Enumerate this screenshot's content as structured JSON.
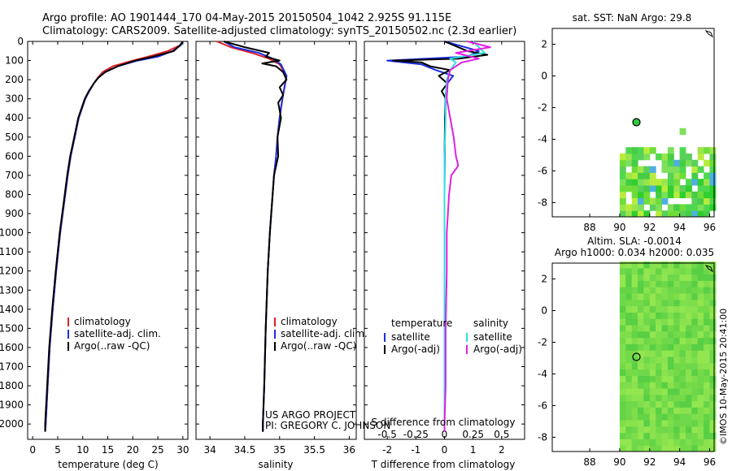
{
  "header": {
    "line1": "Argo profile: AO 1901444_170 04-May-2015 20150504_1042 2.925S 91.115E",
    "line2": "Climatology: CARS2009. Satellite-adjusted climatology: synTS_20150502.nc (2.3d earlier)"
  },
  "colors": {
    "climatology": "#e02020",
    "satellite": "#1a2ee0",
    "argo": "#000000",
    "satellite_diff_S": "#30e0e0",
    "argo_diff_S": "#e020e0"
  },
  "depth_axis": {
    "ticks": [
      0,
      100,
      200,
      300,
      400,
      500,
      600,
      700,
      800,
      900,
      1000,
      1100,
      1200,
      1300,
      1400,
      1500,
      1600,
      1700,
      1800,
      1900,
      2000
    ],
    "range": [
      0,
      2080
    ]
  },
  "credits": {
    "project": "US ARGO PROJECT",
    "pi": "PI: GREGORY C. JOHNSON"
  },
  "watermark": "©IMOS 10-May-2015 20:41:00",
  "chart_data": [
    {
      "type": "line",
      "name": "temperature",
      "xlabel": "temperature (deg C)",
      "xlim": [
        -1,
        31
      ],
      "xticks": [
        0,
        5,
        10,
        15,
        20,
        25,
        30
      ],
      "legend": [
        "climatology",
        "satellite-adj. clim.",
        "Argo(..raw -QC)"
      ],
      "series": [
        {
          "name": "climatology",
          "depth": [
            0,
            20,
            50,
            80,
            100,
            130,
            160,
            190,
            220,
            260,
            300,
            400,
            500,
            600,
            700,
            800,
            900,
            1000,
            1200,
            1400,
            1600,
            1800,
            2000,
            2040
          ],
          "values": [
            30,
            29.5,
            27,
            23,
            20,
            16,
            14,
            13,
            12.2,
            11.3,
            10.5,
            9.2,
            8.4,
            7.6,
            7.0,
            6.5,
            6.0,
            5.5,
            4.7,
            4.0,
            3.4,
            3.0,
            2.6,
            2.5
          ]
        },
        {
          "name": "satellite-adj. clim.",
          "depth": [
            0,
            20,
            50,
            80,
            100,
            130,
            160,
            190,
            220,
            260,
            300,
            400,
            500,
            600,
            700,
            800,
            900,
            1000,
            1200,
            1400,
            1600,
            1800,
            2000,
            2040
          ],
          "values": [
            30,
            29.6,
            28,
            25,
            21,
            17,
            14.5,
            13.1,
            12.2,
            11.3,
            10.5,
            9.2,
            8.4,
            7.6,
            7.0,
            6.5,
            6.0,
            5.5,
            4.7,
            4.0,
            3.4,
            3.0,
            2.6,
            2.5
          ]
        },
        {
          "name": "Argo(..raw -QC)",
          "depth": [
            0,
            20,
            50,
            80,
            100,
            130,
            160,
            190,
            220,
            260,
            300,
            400,
            500,
            600,
            700,
            800,
            900,
            1000,
            1200,
            1400,
            1600,
            1800,
            2000,
            2040
          ],
          "values": [
            30,
            29.4,
            28.2,
            24,
            20.5,
            17,
            14.5,
            13.1,
            12.2,
            11.2,
            10.4,
            9.1,
            8.3,
            7.5,
            6.9,
            6.4,
            5.9,
            5.4,
            4.6,
            3.9,
            3.3,
            2.9,
            2.5,
            2.5
          ]
        }
      ]
    },
    {
      "type": "line",
      "name": "salinity",
      "xlabel": "salinity",
      "xlim": [
        33.8,
        36.1
      ],
      "xticks": [
        34,
        34.5,
        35,
        35.5,
        36
      ],
      "legend": [
        "climatology",
        "satellite-adj. clim.",
        "Argo(..raw -QC)"
      ],
      "series": [
        {
          "name": "climatology",
          "depth": [
            0,
            30,
            60,
            90,
            120,
            150,
            180,
            220,
            260,
            300,
            400,
            500,
            600,
            700,
            800,
            1000,
            1200,
            1500,
            1800,
            2000,
            2040
          ],
          "values": [
            34.1,
            34.3,
            34.6,
            34.85,
            35.0,
            35.05,
            35.1,
            35.08,
            35.06,
            35.04,
            35.0,
            34.97,
            34.95,
            34.92,
            34.9,
            34.86,
            34.83,
            34.8,
            34.78,
            34.76,
            34.76
          ]
        },
        {
          "name": "satellite-adj. clim.",
          "depth": [
            0,
            30,
            60,
            90,
            120,
            150,
            180,
            220,
            260,
            300,
            400,
            500,
            600,
            700,
            800,
            1000,
            1200,
            1500,
            1800,
            2000,
            2040
          ],
          "values": [
            34.2,
            34.35,
            34.7,
            34.9,
            35.02,
            35.06,
            35.1,
            35.08,
            35.06,
            35.04,
            35.0,
            34.97,
            34.95,
            34.92,
            34.9,
            34.86,
            34.83,
            34.8,
            34.78,
            34.76,
            34.76
          ]
        },
        {
          "name": "Argo(..raw -QC)",
          "depth": [
            0,
            30,
            60,
            80,
            100,
            115,
            130,
            160,
            200,
            240,
            280,
            320,
            400,
            500,
            600,
            700,
            800,
            1000,
            1200,
            1500,
            1800,
            2000,
            2040
          ],
          "values": [
            34.2,
            34.5,
            34.85,
            34.8,
            35.0,
            34.75,
            34.95,
            35.05,
            35.1,
            35.0,
            35.05,
            34.98,
            35.02,
            34.97,
            34.98,
            34.92,
            34.9,
            34.86,
            34.83,
            34.8,
            34.78,
            34.76,
            34.76
          ]
        }
      ]
    },
    {
      "type": "line",
      "name": "difference from climatology",
      "xlabel": "T difference from climatology",
      "xlabel_top": "S difference from climatology",
      "xlim": [
        -2.8,
        2.8
      ],
      "xticks": [
        -2,
        -1,
        0,
        1,
        2
      ],
      "xticks_S": [
        -0.5,
        -0.25,
        0,
        0.25,
        0.5
      ],
      "legend_T": [
        "temperature",
        "satellite",
        "Argo(-adj)"
      ],
      "legend_S": [
        "salinity",
        "satellite",
        "Argo(-adj)"
      ],
      "series": [
        {
          "name": "T satellite",
          "depth": [
            0,
            50,
            80,
            100,
            120,
            150,
            180,
            220,
            260,
            300,
            400,
            600,
            800,
            1000,
            1500,
            2000,
            2040
          ],
          "values": [
            0,
            1.2,
            0.8,
            -2.0,
            -0.8,
            -0.3,
            0.3,
            0.1,
            0.05,
            0.03,
            0.02,
            0.01,
            0,
            0,
            0,
            0,
            0
          ]
        },
        {
          "name": "T Argo(-adj)",
          "depth": [
            0,
            50,
            70,
            90,
            100,
            110,
            130,
            150,
            180,
            220,
            260,
            300,
            400,
            600,
            800,
            1000,
            1500,
            2000,
            2040
          ],
          "values": [
            0,
            0.8,
            1.5,
            0.5,
            -1.8,
            -0.8,
            -0.5,
            0.2,
            -0.2,
            0.1,
            -0.1,
            0.05,
            0.02,
            0,
            0,
            0,
            0,
            0,
            0
          ]
        },
        {
          "name": "S satellite",
          "depth": [
            0,
            30,
            60,
            90,
            110,
            150,
            200,
            300,
            400,
            600,
            800,
            1000,
            1500,
            2000,
            2040
          ],
          "values": [
            0.25,
            0.3,
            0.35,
            0.05,
            0.1,
            0.05,
            0.02,
            0.01,
            0.01,
            0,
            0,
            0,
            0,
            0,
            0
          ]
        },
        {
          "name": "S Argo(-adj)",
          "depth": [
            0,
            30,
            60,
            90,
            110,
            150,
            200,
            300,
            400,
            500,
            600,
            650,
            700,
            800,
            900,
            1000,
            1200,
            1500,
            1800,
            2000,
            2040
          ],
          "values": [
            0.2,
            0.4,
            0.1,
            0.3,
            0.15,
            0.05,
            0.03,
            0.02,
            0.05,
            0.08,
            0.1,
            0.12,
            0.06,
            0.04,
            0.03,
            0.02,
            0.02,
            0.01,
            0.01,
            0,
            0
          ]
        }
      ]
    },
    {
      "type": "heatmap",
      "name": "sst_map",
      "title": "sat. SST: NaN Argo: 29.8",
      "xlim": [
        85.5,
        96.3
      ],
      "ylim": [
        -8.9,
        3.0
      ],
      "xticks": [
        88,
        90,
        92,
        94,
        96
      ],
      "yticks": [
        2,
        0,
        -2,
        -4,
        -6,
        -8
      ],
      "argo_position": [
        91.115,
        -2.925
      ]
    },
    {
      "type": "heatmap",
      "name": "sla_map",
      "title": "Altim. SLA: -0.0014",
      "subtitle": "Argo h1000: 0.034 h2000: 0.035",
      "xlim": [
        85.5,
        96.3
      ],
      "ylim": [
        -8.9,
        3.0
      ],
      "xticks": [
        88,
        90,
        92,
        94,
        96
      ],
      "yticks": [
        2,
        0,
        -2,
        -4,
        -6,
        -8
      ],
      "argo_position": [
        91.115,
        -2.925
      ]
    }
  ]
}
